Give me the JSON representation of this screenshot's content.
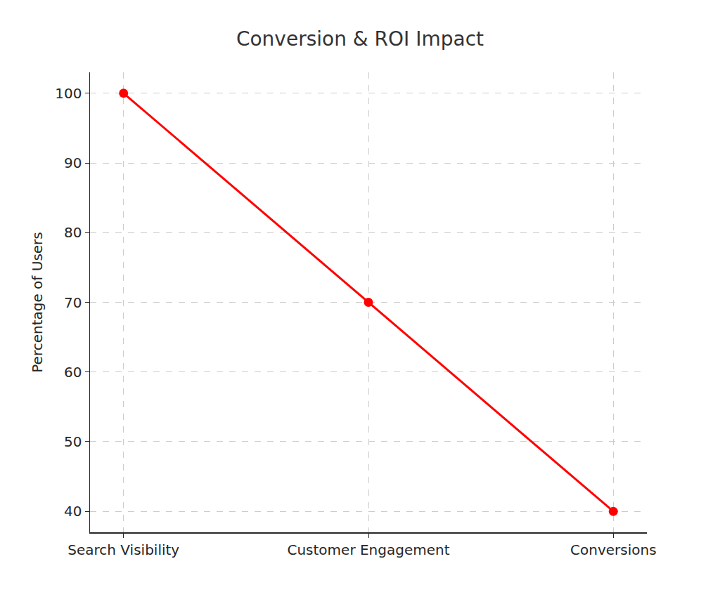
{
  "chart_data": {
    "type": "line",
    "title": "Conversion & ROI Impact",
    "y_label": "Percentage of Users",
    "categories": [
      "Search Visibility",
      "Customer Engagement",
      "Conversions"
    ],
    "values": [
      100,
      70,
      40
    ],
    "color": "red",
    "marker": "circle",
    "line_style": "solid",
    "ylim": [
      37,
      103
    ],
    "yticks": [
      40,
      50,
      60,
      70,
      80,
      90,
      100
    ],
    "grid": true
  }
}
